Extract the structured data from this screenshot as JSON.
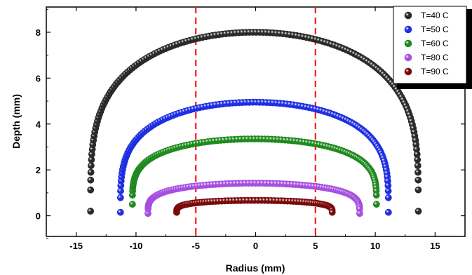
{
  "chart_data": {
    "type": "scatter",
    "xlabel": "Radius (mm)",
    "ylabel": "Depth (mm)",
    "xlim": [
      -17.5,
      17.5
    ],
    "ylim": [
      -0.9,
      9.1
    ],
    "xticks": [
      -15,
      -10,
      -5,
      0,
      5,
      10,
      15
    ],
    "yticks": [
      0,
      2,
      4,
      6,
      8
    ],
    "vertical_reference_lines": [
      {
        "x": -5,
        "color": "#ff1a1a",
        "style": "dashed"
      },
      {
        "x": 5,
        "color": "#ff1a1a",
        "style": "dashed"
      }
    ],
    "legend_position": "top-right",
    "series": [
      {
        "name": "T=40 C",
        "color": "#2a2a2a",
        "shape": "semi-ellipse",
        "x_min": -13.8,
        "x_max": 13.6,
        "peak_depth": 8.0,
        "end_depth": 0.2
      },
      {
        "name": "T=50 C",
        "color": "#1f2fe0",
        "shape": "semi-ellipse",
        "x_min": -11.3,
        "x_max": 11.1,
        "peak_depth": 4.95,
        "end_depth": 0.15
      },
      {
        "name": "T=60 C",
        "color": "#1f8a1f",
        "shape": "semi-ellipse",
        "x_min": -10.3,
        "x_max": 10.1,
        "peak_depth": 3.35,
        "end_depth": 0.5
      },
      {
        "name": "T=80 C",
        "color": "#a64fe0",
        "shape": "semi-ellipse",
        "x_min": -9.0,
        "x_max": 8.7,
        "peak_depth": 1.42,
        "end_depth": 0.1
      },
      {
        "name": "T=90 C",
        "color": "#7a0a0a",
        "shape": "semi-ellipse",
        "x_min": -6.6,
        "x_max": 6.4,
        "peak_depth": 0.67,
        "end_depth": 0.15
      }
    ]
  }
}
